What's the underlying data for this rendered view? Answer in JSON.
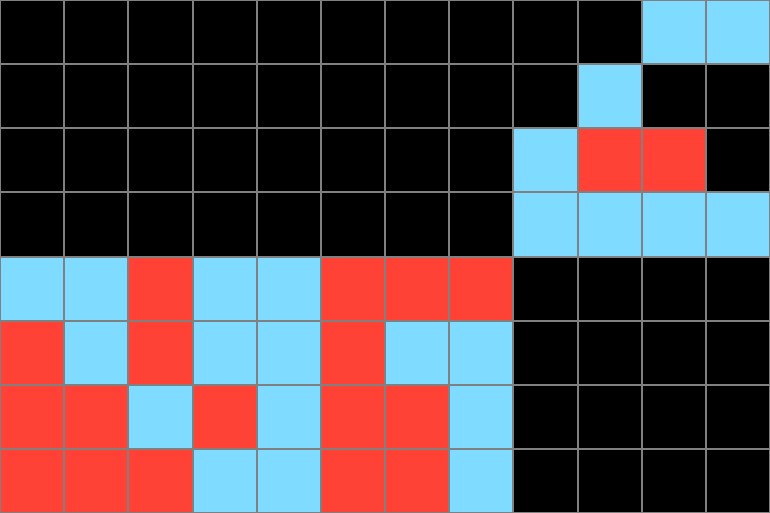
{
  "palette": {
    "k": "#000000",
    "b": "#7FDBFF",
    "r": "#FF4136",
    "grid_line": "#808080"
  },
  "grid": [
    "kkkkkkkkkkbb",
    "kkkkkkkkkbkk",
    "kkkkkkkkbrrk",
    "kkkkkkkkbbbb",
    "bbrbbrrrkkkk",
    "rbrbbrbbkkkk",
    "rrbrbrrbkkkk",
    "rrrbbrrbkkkk"
  ]
}
